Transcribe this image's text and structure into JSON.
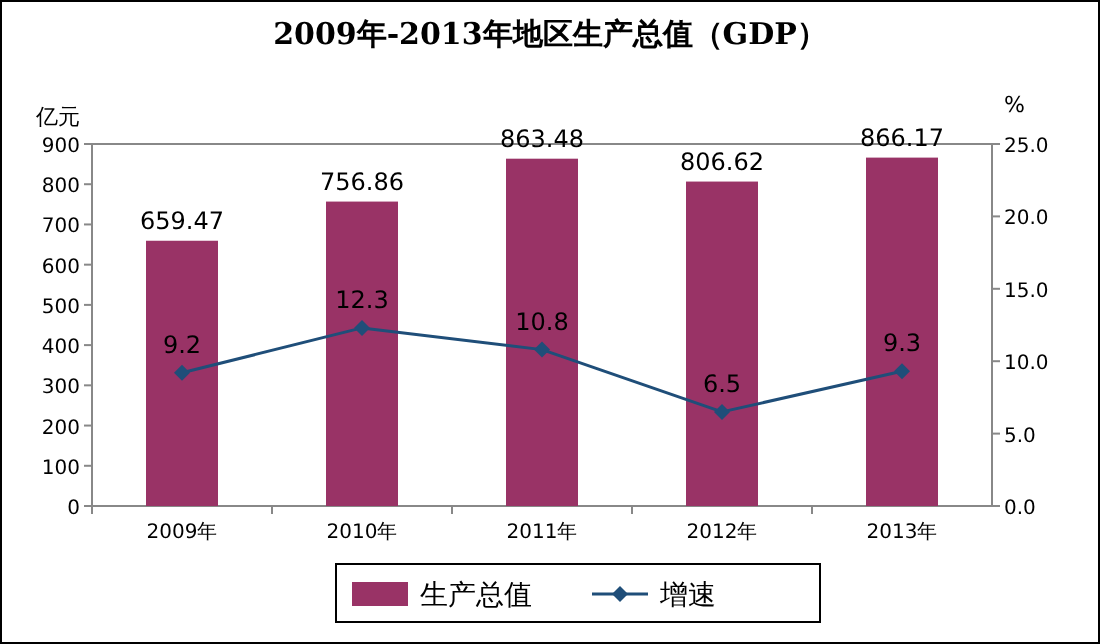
{
  "chart_data": {
    "type": "bar",
    "title": "2009年-2013年地区生产总值（GDP）",
    "ylabel": "亿元",
    "y2label": "%",
    "categories": [
      "2009年",
      "2010年",
      "2011年",
      "2012年",
      "2013年"
    ],
    "series": [
      {
        "name": "生产总值",
        "color": "#993366",
        "values": [
          659.47,
          756.86,
          863.48,
          806.62,
          866.17
        ]
      },
      {
        "name": "增速",
        "type": "line",
        "axis": "y2",
        "color": "#1f4e79",
        "marker": "diamond",
        "values": [
          9.2,
          12.3,
          10.8,
          6.5,
          9.3
        ]
      }
    ],
    "ylim": [
      0,
      900
    ],
    "yticks": [
      0,
      100,
      200,
      300,
      400,
      500,
      600,
      700,
      800,
      900
    ],
    "y2lim": [
      0,
      25
    ],
    "y2ticks": [
      {
        "value": 0,
        "label": "0.0"
      },
      {
        "value": 5,
        "label": "5.0"
      },
      {
        "value": 10,
        "label": "10.0"
      },
      {
        "value": 15,
        "label": "15.0"
      },
      {
        "value": 20,
        "label": "20.0"
      },
      {
        "value": 25,
        "label": "25.0"
      }
    ],
    "data_labels": true,
    "legend": "bottom",
    "grid": false
  }
}
